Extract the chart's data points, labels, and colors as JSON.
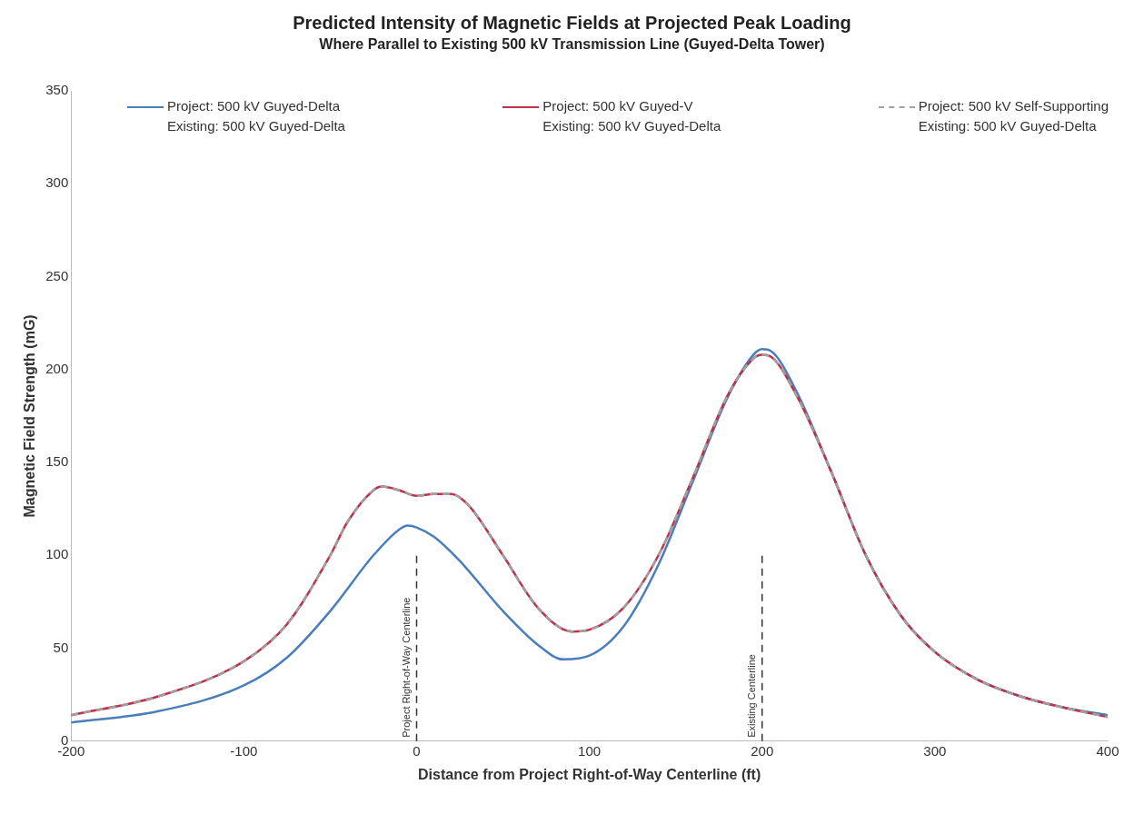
{
  "chart_data": {
    "type": "line",
    "title": "Predicted Intensity of Magnetic Fields at Projected Peak Loading",
    "subtitle": "Where Parallel to Existing 500 kV Transmission Line (Guyed-Delta Tower)",
    "xlabel": "Distance from Project Right-of-Way Centerline (ft)",
    "ylabel": "Magnetic Field Strength (mG)",
    "xlim": [
      -200,
      400
    ],
    "xticks": [
      -200,
      -100,
      0,
      100,
      200,
      300,
      400
    ],
    "ylim": [
      0,
      350
    ],
    "yticks": [
      0,
      50,
      100,
      150,
      200,
      250,
      300,
      350
    ],
    "grid": false,
    "legend": "top",
    "marker": "none",
    "ref_lines": [
      {
        "axis": "x",
        "value": 0,
        "label": "Project Right-of-Way Centerline",
        "line_style": "dashed",
        "color": "#333333"
      },
      {
        "axis": "x",
        "value": 200,
        "label": "Existing Centerline",
        "line_style": "dashed",
        "color": "#333333"
      }
    ],
    "series": [
      {
        "name": "Project: 500 kV Guyed-Delta\nExisting: 500 kV Guyed-Delta",
        "color": "#4a7ebb",
        "line_style": "solid",
        "x": [
          -200,
          -150,
          -100,
          -75,
          -50,
          -25,
          -10,
          -5,
          0,
          10,
          25,
          50,
          70,
          85,
          100,
          120,
          140,
          160,
          180,
          195,
          200,
          205,
          220,
          240,
          260,
          280,
          300,
          325,
          350,
          375,
          400
        ],
        "values": [
          10,
          16,
          30,
          45,
          70,
          100,
          114,
          116,
          115,
          110,
          97,
          70,
          52,
          44,
          46,
          62,
          95,
          140,
          185,
          208,
          211,
          210,
          188,
          145,
          100,
          68,
          48,
          33,
          24,
          18,
          14
        ]
      },
      {
        "name": "Project: 500 kV Guyed-V\nExisting: 500 kV Guyed-Delta",
        "color": "#c0304a",
        "line_style": "solid",
        "x": [
          -200,
          -150,
          -100,
          -75,
          -50,
          -40,
          -25,
          -20,
          -10,
          0,
          10,
          20,
          30,
          50,
          70,
          90,
          100,
          120,
          140,
          160,
          180,
          195,
          200,
          205,
          220,
          240,
          260,
          280,
          300,
          325,
          350,
          375,
          400
        ],
        "values": [
          14,
          24,
          43,
          63,
          100,
          118,
          135,
          137,
          135,
          132,
          133,
          133,
          127,
          100,
          72,
          59,
          60,
          72,
          100,
          142,
          186,
          206,
          208,
          207,
          186,
          145,
          100,
          68,
          48,
          33,
          24,
          18,
          13
        ]
      },
      {
        "name": "Project: 500 kV Self-Supporting\nExisting: 500 kV Guyed-Delta",
        "color": "#a0a0a0",
        "line_style": "dashed",
        "x": [
          -200,
          -150,
          -100,
          -75,
          -50,
          -40,
          -25,
          -20,
          -10,
          0,
          10,
          20,
          30,
          50,
          70,
          90,
          100,
          120,
          140,
          160,
          180,
          195,
          200,
          205,
          220,
          240,
          260,
          280,
          300,
          325,
          350,
          375,
          400
        ],
        "values": [
          14,
          24,
          43,
          63,
          100,
          118,
          135,
          137,
          135,
          132,
          133,
          133,
          127,
          100,
          72,
          59,
          60,
          72,
          100,
          142,
          186,
          206,
          208,
          207,
          186,
          145,
          100,
          68,
          48,
          33,
          24,
          18,
          13
        ]
      }
    ]
  }
}
